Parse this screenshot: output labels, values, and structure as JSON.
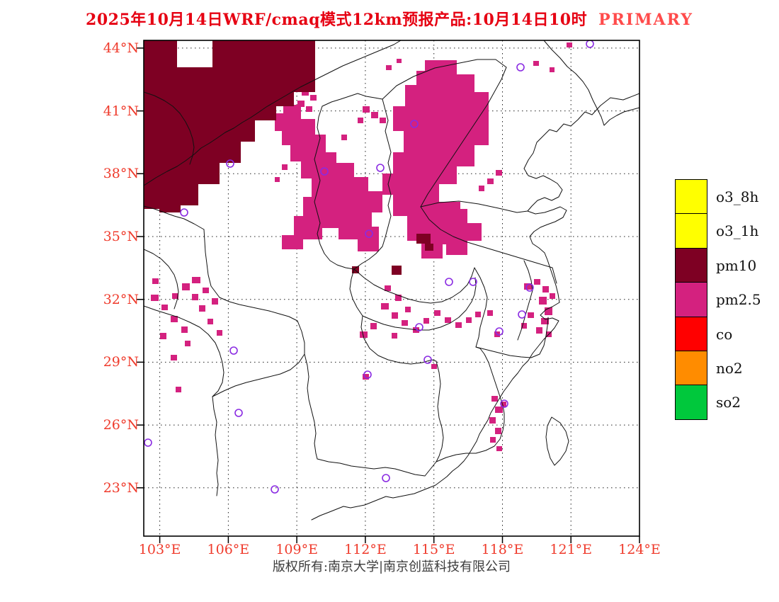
{
  "title": {
    "main": "2025年10月14日WRF/cmaq模式12km预报产品:10月14日10时",
    "highlight": "PRIMARY"
  },
  "axes": {
    "lat_labels": [
      "44°N",
      "41°N",
      "38°N",
      "35°N",
      "32°N",
      "29°N",
      "26°N",
      "23°N"
    ],
    "lon_labels": [
      "103°E",
      "106°E",
      "109°E",
      "112°E",
      "115°E",
      "118°E",
      "121°E",
      "124°E"
    ]
  },
  "legend": {
    "items": [
      {
        "label": "o3_8h",
        "color": "#ffff00"
      },
      {
        "label": "o3_1h",
        "color": "#ffff00"
      },
      {
        "label": "pm10",
        "color": "#7e0023"
      },
      {
        "label": "pm2.5",
        "color": "#d4217f"
      },
      {
        "label": "co",
        "color": "#ff0000"
      },
      {
        "label": "no2",
        "color": "#ff8c00"
      },
      {
        "label": "so2",
        "color": "#00c83c"
      }
    ]
  },
  "footer": {
    "copyright": "版权所有:南京大学|南京创蓝科技有限公司"
  },
  "colors": {
    "title_red": "#e60012",
    "primary_red": "#ff4b4b",
    "axis_red": "#ef3b2c",
    "pm10_fill": "#7e0023",
    "pm25_fill": "#d4217f",
    "city_marker": "#8a2be2"
  }
}
